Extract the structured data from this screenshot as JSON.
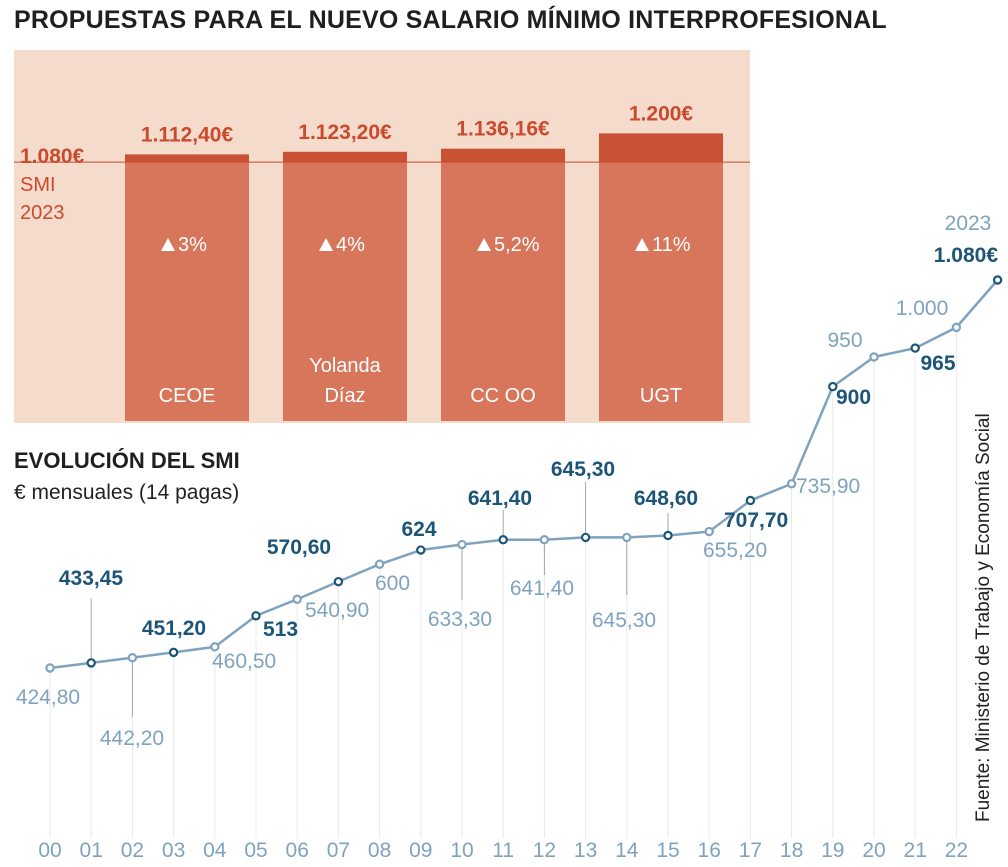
{
  "title": "PROPUESTAS PARA EL NUEVO SALARIO MÍNIMO INTERPROFESIONAL",
  "colors": {
    "panel_bg": "#f5dbcb",
    "bar": "#d7765b",
    "bar_increment": "#c95235",
    "accent_red": "#c94a2d",
    "line": "#7fa3bf",
    "dark_blue": "#1c5578",
    "light_blue": "#7fa3bf"
  },
  "chart_data": [
    {
      "type": "bar",
      "title": "PROPUESTAS PARA EL NUEVO SALARIO MÍNIMO INTERPROFESIONAL",
      "reference": {
        "value_label": "1.080€",
        "line1": "SMI",
        "line2": "2023",
        "value": 1080
      },
      "ylim": [
        0,
        1210
      ],
      "categories": [
        "CEOE",
        "Yolanda Díaz",
        "CC OO",
        "UGT"
      ],
      "category_lines": [
        [
          "CEOE"
        ],
        [
          "Yolanda",
          "Díaz"
        ],
        [
          "CC OO"
        ],
        [
          "UGT"
        ]
      ],
      "values": [
        1112.4,
        1123.2,
        1136.16,
        1200.0
      ],
      "value_labels": [
        "1.112,40€",
        "1.123,20€",
        "1.136,16€",
        "1.200€"
      ],
      "increase_labels": [
        "3%",
        "4%",
        "5,2%",
        "11%"
      ]
    },
    {
      "type": "line",
      "title": "EVOLUCIÓN DEL SMI",
      "subtitle": "€ mensuales (14 pagas)",
      "ylim": [
        380,
        1100
      ],
      "x_labels": [
        "00",
        "01",
        "02",
        "03",
        "04",
        "05",
        "06",
        "07",
        "08",
        "09",
        "10",
        "11",
        "12",
        "13",
        "14",
        "15",
        "16",
        "17",
        "18",
        "19",
        "20",
        "21",
        "22"
      ],
      "x_extra_label": "2023",
      "values": [
        424.8,
        433.45,
        442.2,
        451.2,
        460.5,
        513,
        540.9,
        570.6,
        600,
        624,
        633.3,
        641.4,
        641.4,
        645.3,
        645.3,
        648.6,
        655.2,
        707.7,
        735.9,
        900,
        950,
        965,
        1000,
        1080
      ],
      "value_labels": [
        "424,80",
        "433,45",
        "442,20",
        "451,20",
        "460,50",
        "513",
        "540,90",
        "570,60",
        "600",
        "624",
        "633,30",
        "641,40",
        "641,40",
        "645,30",
        "645,30",
        "648,60",
        "655,20",
        "707,70",
        "735,90",
        "900",
        "950",
        "965",
        "1.000",
        "1.080€"
      ]
    }
  ],
  "line_subtitle": "€ mensuales (14 pagas)",
  "source": "Fuente: Ministerio de Trabajo y Economía Social"
}
